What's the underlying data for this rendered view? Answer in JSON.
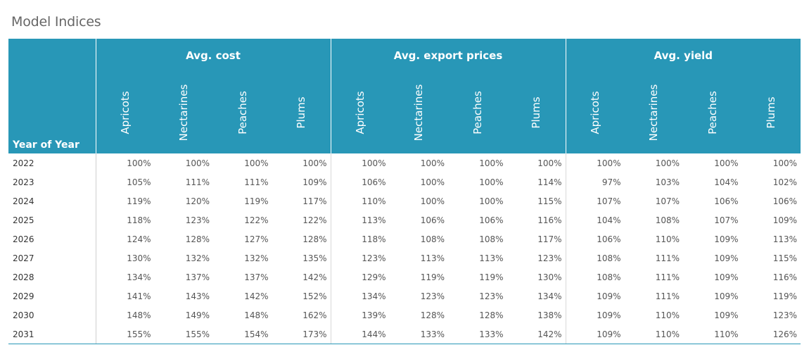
{
  "title": "Model Indices",
  "chart_data": {
    "type": "table",
    "row_header_label": "Year of Year",
    "groups": [
      {
        "name": "Avg. cost",
        "columns": [
          "Apricots",
          "Nectarines",
          "Peaches",
          "Plums"
        ]
      },
      {
        "name": "Avg. export prices",
        "columns": [
          "Apricots",
          "Nectarines",
          "Peaches",
          "Plums"
        ]
      },
      {
        "name": "Avg. yield",
        "columns": [
          "Apricots",
          "Nectarines",
          "Peaches",
          "Plums"
        ]
      }
    ],
    "rows": [
      {
        "year": "2022",
        "values": [
          "100%",
          "100%",
          "100%",
          "100%",
          "100%",
          "100%",
          "100%",
          "100%",
          "100%",
          "100%",
          "100%",
          "100%"
        ]
      },
      {
        "year": "2023",
        "values": [
          "105%",
          "111%",
          "111%",
          "109%",
          "106%",
          "100%",
          "100%",
          "114%",
          "97%",
          "103%",
          "104%",
          "102%"
        ]
      },
      {
        "year": "2024",
        "values": [
          "119%",
          "120%",
          "119%",
          "117%",
          "110%",
          "100%",
          "100%",
          "115%",
          "107%",
          "107%",
          "106%",
          "106%"
        ]
      },
      {
        "year": "2025",
        "values": [
          "118%",
          "123%",
          "122%",
          "122%",
          "113%",
          "106%",
          "106%",
          "116%",
          "104%",
          "108%",
          "107%",
          "109%"
        ]
      },
      {
        "year": "2026",
        "values": [
          "124%",
          "128%",
          "127%",
          "128%",
          "118%",
          "108%",
          "108%",
          "117%",
          "106%",
          "110%",
          "109%",
          "113%"
        ]
      },
      {
        "year": "2027",
        "values": [
          "130%",
          "132%",
          "132%",
          "135%",
          "123%",
          "113%",
          "113%",
          "123%",
          "108%",
          "111%",
          "109%",
          "115%"
        ]
      },
      {
        "year": "2028",
        "values": [
          "134%",
          "137%",
          "137%",
          "142%",
          "129%",
          "119%",
          "119%",
          "130%",
          "108%",
          "111%",
          "109%",
          "116%"
        ]
      },
      {
        "year": "2029",
        "values": [
          "141%",
          "143%",
          "142%",
          "152%",
          "134%",
          "123%",
          "123%",
          "134%",
          "109%",
          "111%",
          "109%",
          "119%"
        ]
      },
      {
        "year": "2030",
        "values": [
          "148%",
          "149%",
          "148%",
          "162%",
          "139%",
          "128%",
          "128%",
          "138%",
          "109%",
          "110%",
          "109%",
          "123%"
        ]
      },
      {
        "year": "2031",
        "values": [
          "155%",
          "155%",
          "154%",
          "173%",
          "144%",
          "133%",
          "133%",
          "142%",
          "109%",
          "110%",
          "110%",
          "126%"
        ]
      }
    ]
  },
  "colors": {
    "header_bg": "#2897b7",
    "header_text": "#ffffff",
    "title_text": "#666666"
  }
}
